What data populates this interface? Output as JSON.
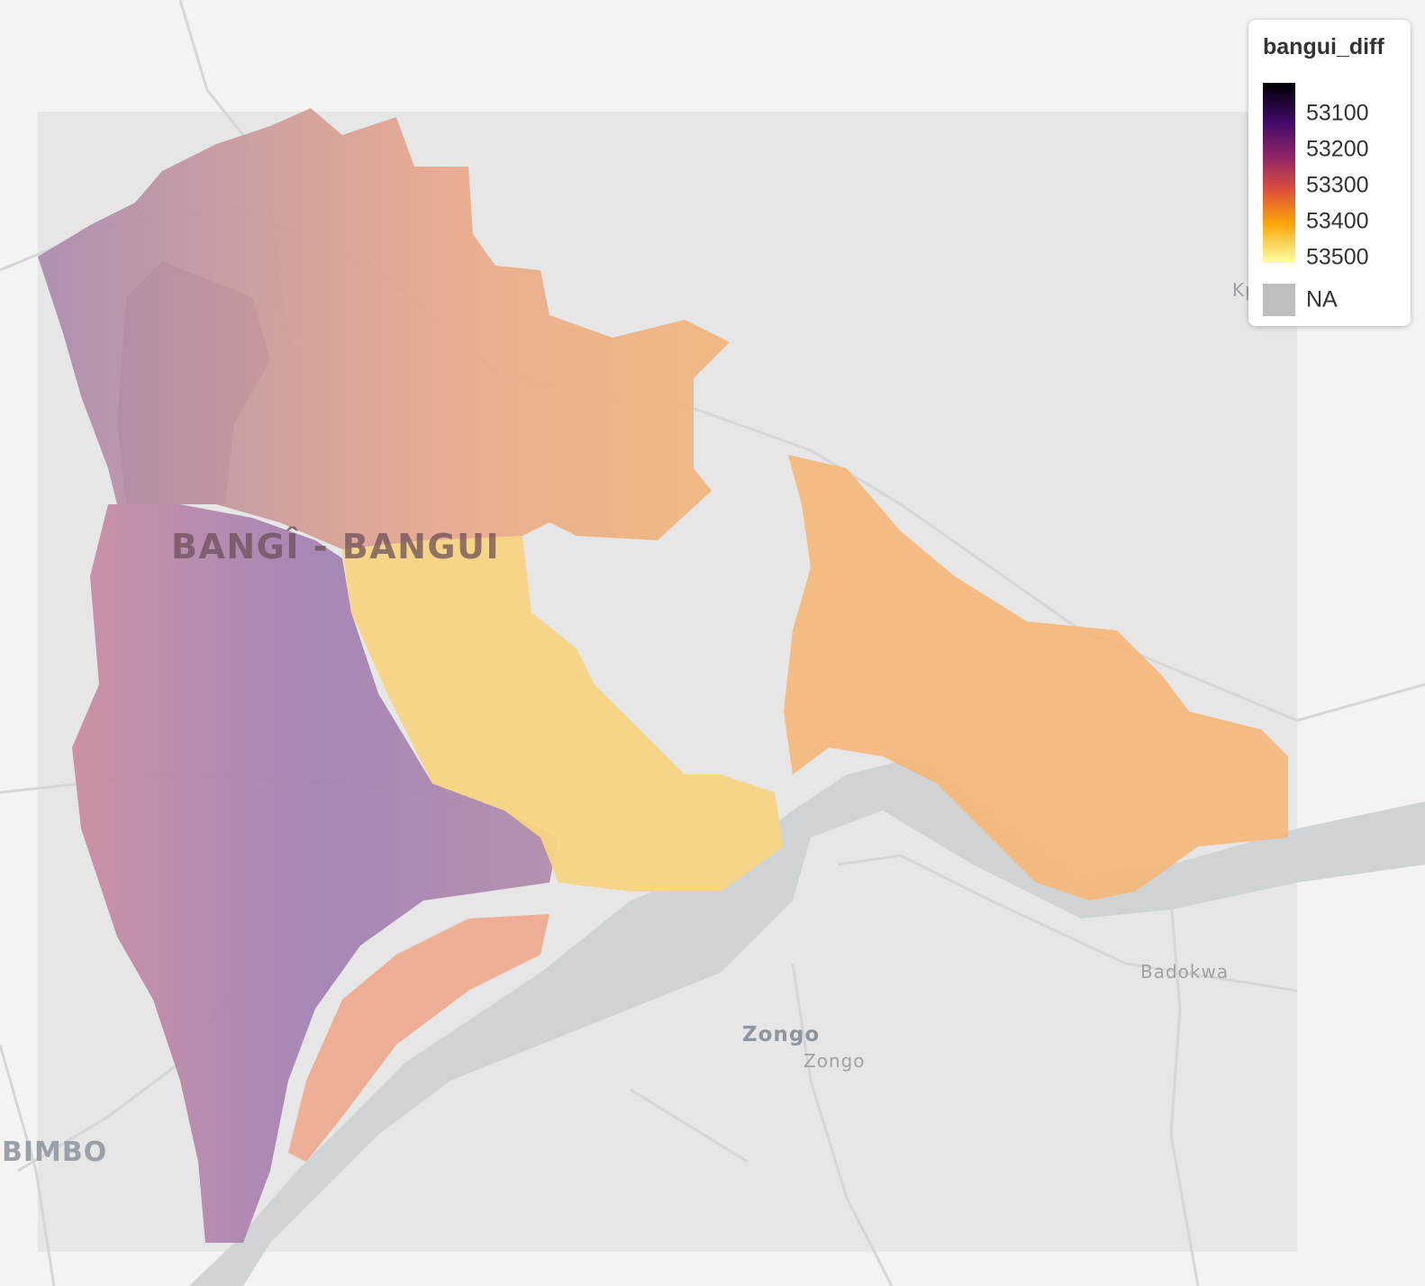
{
  "legend": {
    "title": "bangui_diff",
    "ticks": [
      "53100",
      "53200",
      "53300",
      "53400",
      "53500"
    ],
    "na_label": "NA",
    "na_color": "#bebebe",
    "palette": [
      "#000004",
      "#420a68",
      "#932667",
      "#dd513a",
      "#fca50a",
      "#fcffa4"
    ]
  },
  "labels": {
    "bangui": "BANGÎ - BANGUI",
    "bimbo": "BIMBO",
    "zongo_large": "Zongo",
    "zongo_small": "Zongo",
    "badokwa": "Badokwa",
    "kp": "Kp"
  }
}
